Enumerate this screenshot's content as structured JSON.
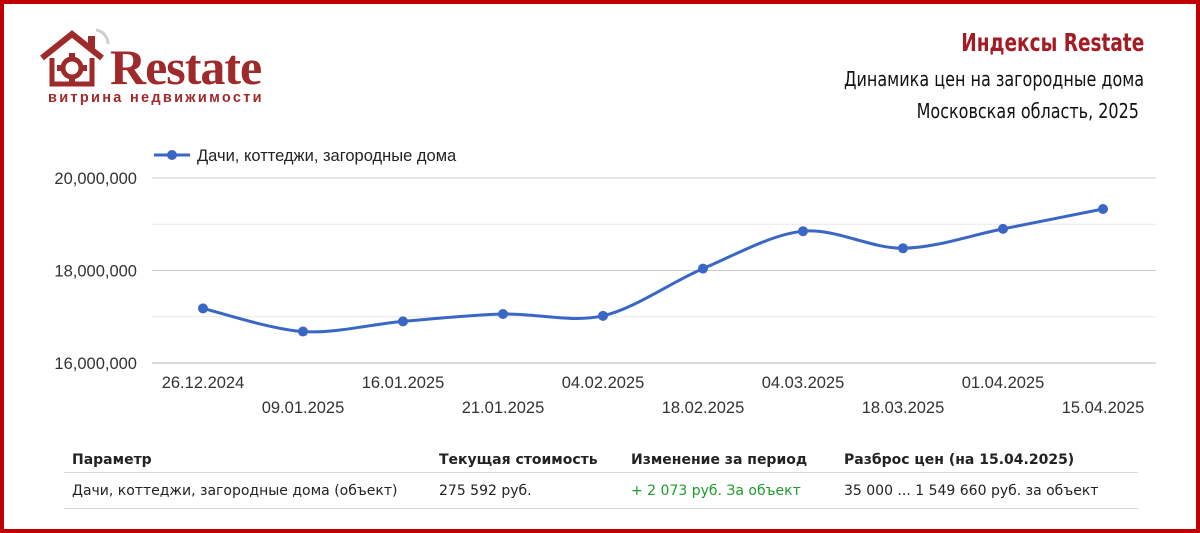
{
  "logo": {
    "wordmark": "Restate",
    "tagline": "витрина недвижимости",
    "brand_color": "#9e2a2b"
  },
  "header": {
    "title": "Индексы Restate",
    "subtitle1": "Динамика цен на загородные дома",
    "subtitle2": "Московская область, 2025",
    "title_color": "#a31c24"
  },
  "chart_data": {
    "type": "line",
    "categories": [
      "26.12.2024",
      "09.01.2025",
      "16.01.2025",
      "21.01.2025",
      "04.02.2025",
      "18.02.2025",
      "04.03.2025",
      "18.03.2025",
      "01.04.2025",
      "15.04.2025"
    ],
    "series": [
      {
        "name": "Дачи, коттеджи, загородные дома",
        "color": "#3a66c4",
        "values": [
          17180000,
          16680000,
          16900000,
          17060000,
          17020000,
          18040000,
          18850000,
          18480000,
          18900000,
          19330000
        ]
      }
    ],
    "y_ticks": [
      "16,000,000",
      "18,000,000",
      "20,000,000"
    ],
    "ylim": [
      16000000,
      20000000
    ],
    "grid": true,
    "legend": "top-left",
    "smooth": true
  },
  "table": {
    "headers": [
      "Параметр",
      "Текущая стоимость",
      "Изменение за период",
      "Разброс цен (на 15.04.2025)"
    ],
    "rows": [
      [
        "Дачи, коттеджи, загородные дома (объект)",
        "275 592 руб.",
        "+ 2 073 руб. За объект",
        "35 000 ... 1 549 660 руб. за объект"
      ]
    ],
    "change_color": "#1e9b2a"
  }
}
